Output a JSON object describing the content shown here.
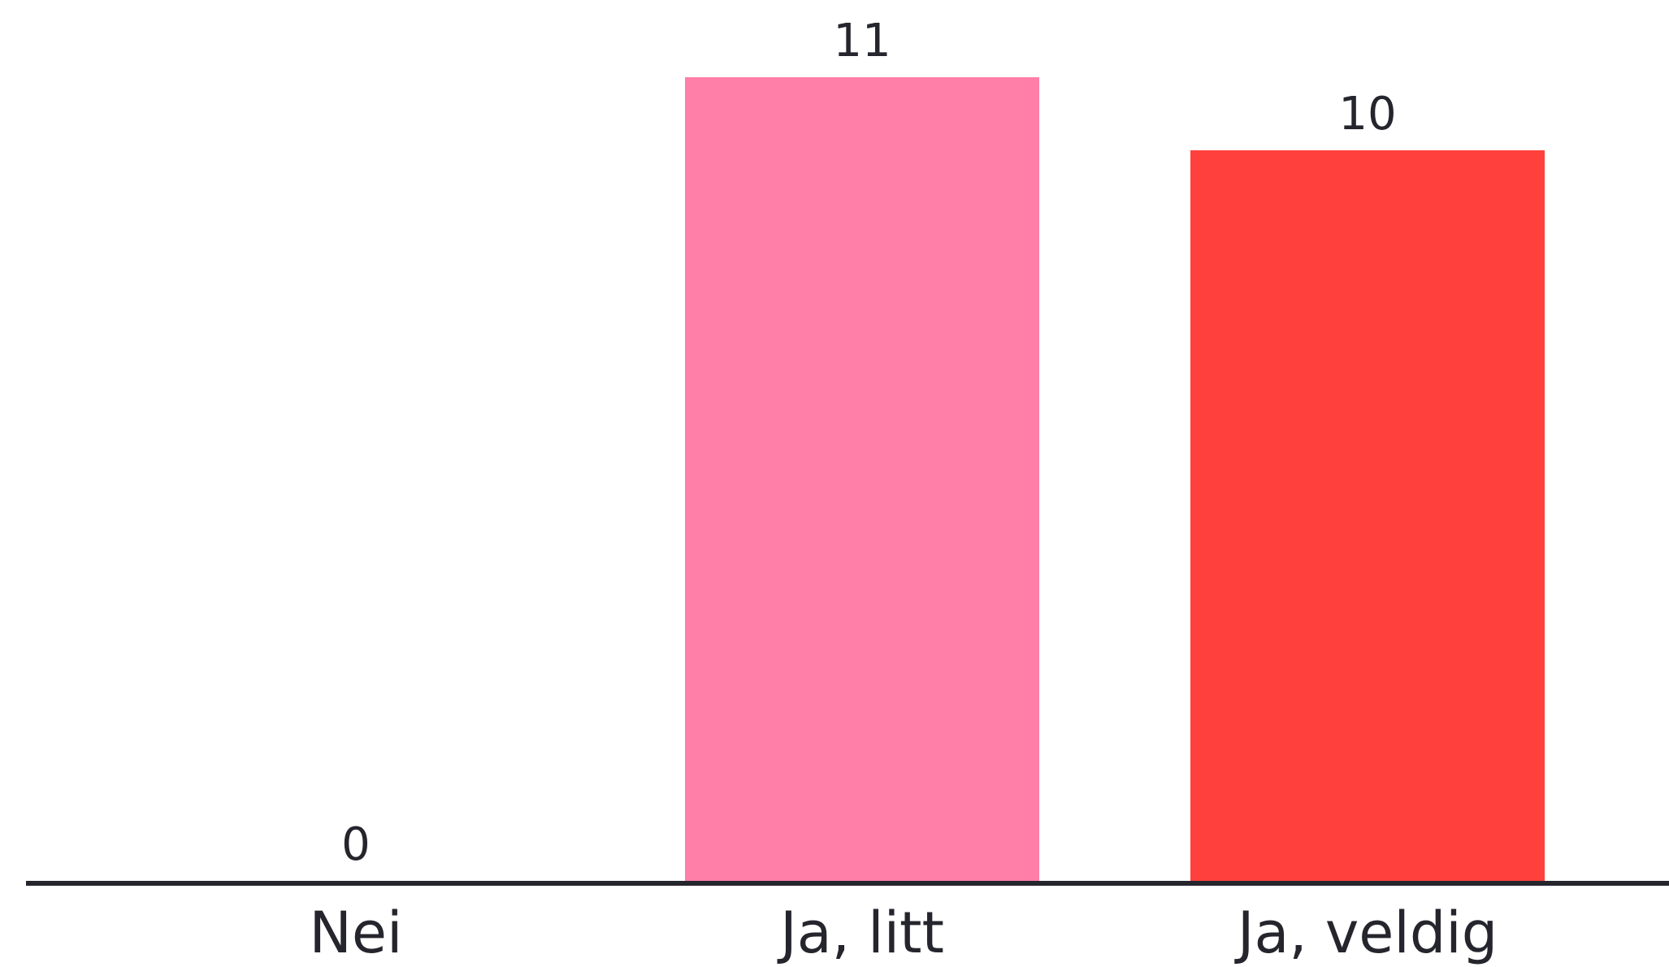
{
  "chart_data": {
    "type": "bar",
    "categories": [
      "Nei",
      "Ja, litt",
      "Ja, veldig"
    ],
    "values": [
      0,
      11,
      10
    ],
    "value_labels": [
      "0",
      "11",
      "10"
    ],
    "colors": [
      "#ff7fa9",
      "#ff7fa9",
      "#ff403d"
    ],
    "axis_color": "#25252d",
    "text_color": "#25252d",
    "ylim": [
      0,
      11
    ],
    "grid": false,
    "legend": false
  }
}
